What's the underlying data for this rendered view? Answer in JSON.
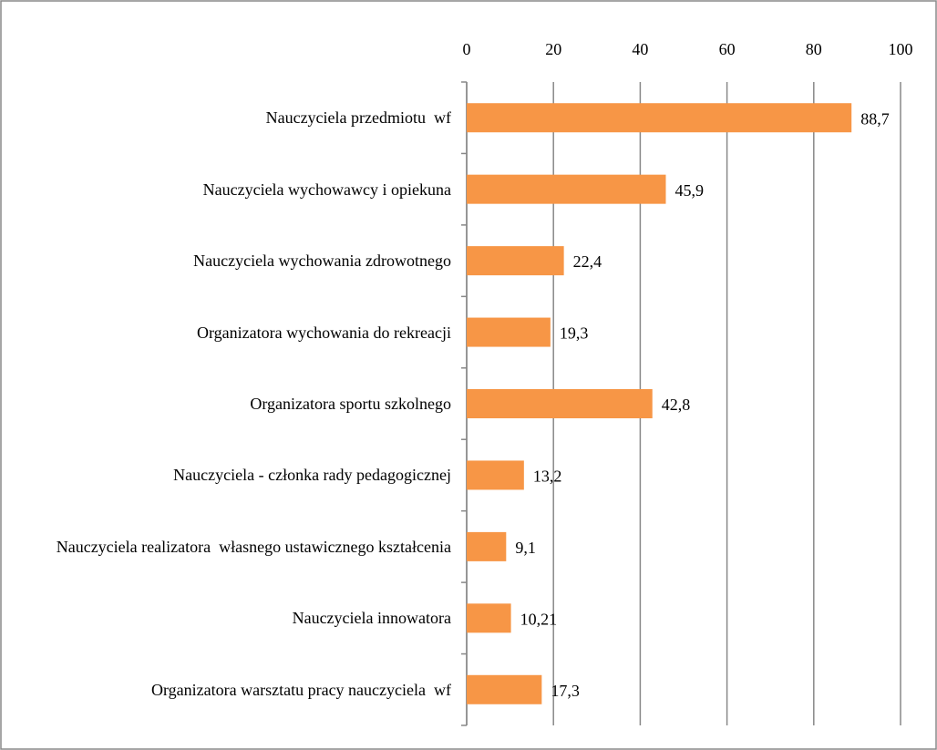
{
  "chart_data": {
    "type": "bar",
    "orientation": "horizontal",
    "categories": [
      "Nauczyciela przedmiotu  wf",
      "Nauczyciela wychowawcy i opiekuna",
      "Nauczyciela wychowania zdrowotnego",
      "Organizatora wychowania do rekreacji",
      "Organizatora sportu szkolnego",
      "Nauczyciela - członka rady pedagogicznej",
      "Nauczyciela realizatora  własnego ustawicznego kształcenia",
      "Nauczyciela innowatora",
      "Organizatora warsztatu pracy nauczyciela  wf"
    ],
    "values": [
      88.7,
      45.9,
      22.4,
      19.3,
      42.8,
      13.2,
      9.1,
      10.21,
      17.3
    ],
    "value_labels": [
      "88,7",
      "45,9",
      "22,4",
      "19,3",
      "42,8",
      "13,2",
      "9,1",
      "10,21",
      "17,3"
    ],
    "color": "#f79646",
    "xlim": [
      0,
      100
    ],
    "xticks": [
      0,
      20,
      40,
      60,
      80,
      100
    ],
    "grid": true
  }
}
